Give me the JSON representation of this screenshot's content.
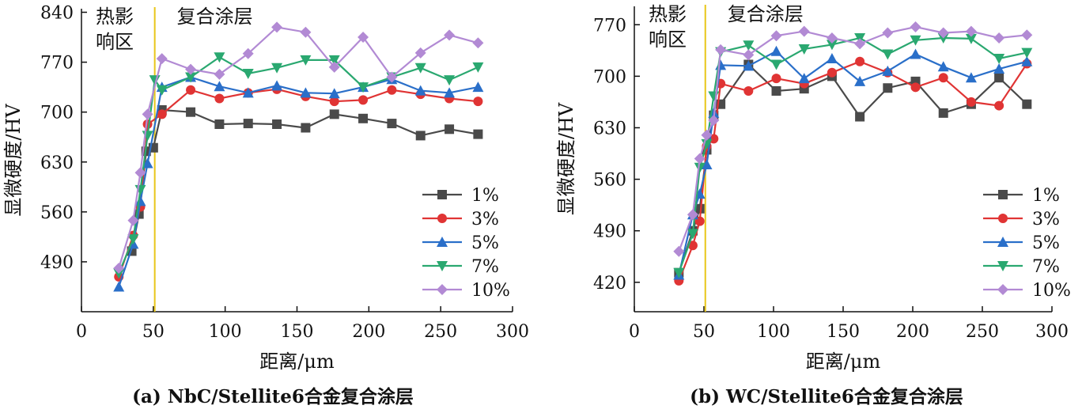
{
  "chart_data": [
    {
      "type": "line",
      "caption": "(a) NbC/Stellite6合金复合涂层",
      "xlabel": "距离/μm",
      "ylabel": "显微硬度/HV",
      "xlim": [
        0,
        300
      ],
      "ylim": [
        420,
        845
      ],
      "xticks": [
        0,
        50,
        100,
        150,
        200,
        250,
        300
      ],
      "yticks": [
        490,
        560,
        630,
        700,
        770,
        840
      ],
      "boundary_x": 51,
      "region_labels": {
        "haz_line1": "热影",
        "haz_line2": "响区",
        "coating": "复合涂层"
      },
      "legend_position": "bottom-right",
      "series": [
        {
          "name": "1%",
          "color": "#4a4a4a",
          "marker": "square",
          "points": [
            [
              35,
              505
            ],
            [
              40,
              557
            ],
            [
              45,
              645
            ],
            [
              50,
              650
            ],
            [
              56,
              703
            ],
            [
              76,
              700
            ],
            [
              96,
              683
            ],
            [
              116,
              684
            ],
            [
              136,
              683
            ],
            [
              156,
              678
            ],
            [
              176,
              697
            ],
            [
              196,
              691
            ],
            [
              216,
              684
            ],
            [
              236,
              667
            ],
            [
              256,
              676
            ],
            [
              276,
              669
            ]
          ]
        },
        {
          "name": "3%",
          "color": "#e03434",
          "marker": "circle",
          "points": [
            [
              26,
              469
            ],
            [
              36,
              527
            ],
            [
              41,
              567
            ],
            [
              46,
              683
            ],
            [
              56,
              697
            ],
            [
              76,
              731
            ],
            [
              96,
              719
            ],
            [
              116,
              727
            ],
            [
              136,
              732
            ],
            [
              156,
              722
            ],
            [
              176,
              715
            ],
            [
              196,
              717
            ],
            [
              216,
              731
            ],
            [
              236,
              725
            ],
            [
              256,
              719
            ],
            [
              276,
              715
            ]
          ]
        },
        {
          "name": "5%",
          "color": "#2a6fc9",
          "marker": "triangle-up",
          "points": [
            [
              26,
              455
            ],
            [
              36,
              515
            ],
            [
              41,
              575
            ],
            [
              46,
              628
            ],
            [
              56,
              735
            ],
            [
              76,
              749
            ],
            [
              96,
              736
            ],
            [
              116,
              727
            ],
            [
              136,
              737
            ],
            [
              156,
              727
            ],
            [
              176,
              726
            ],
            [
              196,
              735
            ],
            [
              216,
              746
            ],
            [
              236,
              730
            ],
            [
              256,
              727
            ],
            [
              276,
              735
            ]
          ]
        },
        {
          "name": "7%",
          "color": "#2aa870",
          "marker": "triangle-down",
          "points": [
            [
              26,
              474
            ],
            [
              36,
              522
            ],
            [
              41,
              591
            ],
            [
              46,
              667
            ],
            [
              51,
              745
            ],
            [
              56,
              731
            ],
            [
              76,
              749
            ],
            [
              96,
              777
            ],
            [
              116,
              754
            ],
            [
              136,
              762
            ],
            [
              156,
              773
            ],
            [
              176,
              773
            ],
            [
              196,
              735
            ],
            [
              216,
              749
            ],
            [
              236,
              762
            ],
            [
              256,
              745
            ],
            [
              276,
              763
            ]
          ]
        },
        {
          "name": "10%",
          "color": "#b28ad4",
          "marker": "diamond",
          "points": [
            [
              26,
              481
            ],
            [
              36,
              548
            ],
            [
              41,
              615
            ],
            [
              46,
              697
            ],
            [
              56,
              775
            ],
            [
              76,
              760
            ],
            [
              96,
              753
            ],
            [
              116,
              782
            ],
            [
              136,
              819
            ],
            [
              156,
              812
            ],
            [
              176,
              763
            ],
            [
              196,
              805
            ],
            [
              216,
              749
            ],
            [
              236,
              783
            ],
            [
              256,
              808
            ],
            [
              276,
              797
            ]
          ]
        }
      ]
    },
    {
      "type": "line",
      "caption": "(b) WC/Stellite6合金复合涂层",
      "xlabel": "距离/μm",
      "ylabel": "显微硬度/HV",
      "xlim": [
        0,
        300
      ],
      "ylim": [
        380,
        795
      ],
      "xticks": [
        0,
        50,
        100,
        150,
        200,
        250,
        300
      ],
      "yticks": [
        420,
        490,
        560,
        630,
        700,
        770
      ],
      "boundary_x": 51,
      "region_labels": {
        "haz_line1": "热影",
        "haz_line2": "响区",
        "coating": "复合涂层"
      },
      "legend_position": "bottom-right",
      "series": [
        {
          "name": "1%",
          "color": "#4a4a4a",
          "marker": "square",
          "points": [
            [
              32,
              433
            ],
            [
              42,
              490
            ],
            [
              47,
              520
            ],
            [
              52,
              600
            ],
            [
              57,
              647
            ],
            [
              62,
              662
            ],
            [
              82,
              716
            ],
            [
              102,
              680
            ],
            [
              122,
              683
            ],
            [
              142,
              700
            ],
            [
              162,
              645
            ],
            [
              182,
              684
            ],
            [
              202,
              693
            ],
            [
              222,
              650
            ],
            [
              242,
              662
            ],
            [
              262,
              698
            ],
            [
              282,
              662
            ]
          ]
        },
        {
          "name": "3%",
          "color": "#e03434",
          "marker": "circle",
          "points": [
            [
              32,
              422
            ],
            [
              42,
              470
            ],
            [
              47,
              503
            ],
            [
              52,
              605
            ],
            [
              57,
              615
            ],
            [
              62,
              690
            ],
            [
              82,
              680
            ],
            [
              102,
              697
            ],
            [
              122,
              690
            ],
            [
              142,
              705
            ],
            [
              162,
              720
            ],
            [
              182,
              705
            ],
            [
              202,
              685
            ],
            [
              222,
              698
            ],
            [
              242,
              665
            ],
            [
              262,
              660
            ],
            [
              282,
              717
            ]
          ]
        },
        {
          "name": "5%",
          "color": "#2a6fc9",
          "marker": "triangle-up",
          "points": [
            [
              32,
              430
            ],
            [
              42,
              512
            ],
            [
              47,
              540
            ],
            [
              52,
              580
            ],
            [
              57,
              650
            ],
            [
              62,
              715
            ],
            [
              82,
              714
            ],
            [
              102,
              734
            ],
            [
              122,
              697
            ],
            [
              142,
              724
            ],
            [
              162,
              693
            ],
            [
              182,
              707
            ],
            [
              202,
              730
            ],
            [
              222,
              713
            ],
            [
              242,
              698
            ],
            [
              262,
              710
            ],
            [
              282,
              720
            ]
          ]
        },
        {
          "name": "7%",
          "color": "#2aa870",
          "marker": "triangle-down",
          "points": [
            [
              32,
              433
            ],
            [
              42,
              486
            ],
            [
              47,
              576
            ],
            [
              52,
              608
            ],
            [
              57,
              673
            ],
            [
              62,
              733
            ],
            [
              82,
              742
            ],
            [
              102,
              716
            ],
            [
              122,
              737
            ],
            [
              142,
              743
            ],
            [
              162,
              752
            ],
            [
              182,
              730
            ],
            [
              202,
              749
            ],
            [
              222,
              752
            ],
            [
              242,
              751
            ],
            [
              262,
              724
            ],
            [
              282,
              732
            ]
          ]
        },
        {
          "name": "10%",
          "color": "#b28ad4",
          "marker": "diamond",
          "points": [
            [
              32,
              462
            ],
            [
              42,
              512
            ],
            [
              47,
              588
            ],
            [
              52,
              620
            ],
            [
              57,
              640
            ],
            [
              62,
              736
            ],
            [
              82,
              729
            ],
            [
              102,
              755
            ],
            [
              122,
              761
            ],
            [
              142,
              752
            ],
            [
              162,
              744
            ],
            [
              182,
              759
            ],
            [
              202,
              767
            ],
            [
              222,
              759
            ],
            [
              242,
              761
            ],
            [
              262,
              752
            ],
            [
              282,
              756
            ]
          ]
        }
      ]
    }
  ]
}
